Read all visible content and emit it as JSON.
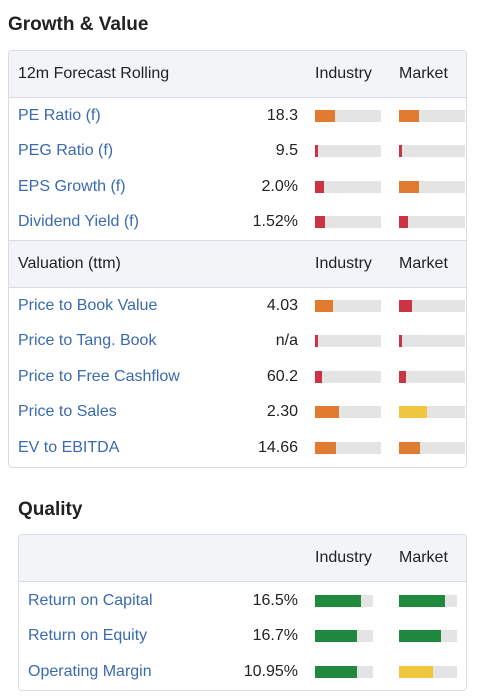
{
  "growth_value": {
    "title": "Growth & Value",
    "forecast": {
      "header": "12m Forecast Rolling",
      "col_industry": "Industry",
      "col_market": "Market",
      "rows": [
        {
          "label": "PE Ratio (f)",
          "value": "18.3",
          "industry_level": 0.3,
          "industry_color": "#e07b30",
          "market_level": 0.3,
          "market_color": "#e07b30"
        },
        {
          "label": "PEG Ratio (f)",
          "value": "9.5",
          "industry_level": 0.04,
          "industry_color": "#cc3344",
          "market_level": 0.04,
          "market_color": "#cc3344"
        },
        {
          "label": "EPS Growth (f)",
          "value": "2.0%",
          "industry_level": 0.14,
          "industry_color": "#cc3344",
          "market_level": 0.3,
          "market_color": "#e07b30"
        },
        {
          "label": "Dividend Yield (f)",
          "value": "1.52%",
          "industry_level": 0.15,
          "industry_color": "#cc3344",
          "market_level": 0.14,
          "market_color": "#cc3344"
        }
      ]
    },
    "valuation": {
      "header": "Valuation (ttm)",
      "col_industry": "Industry",
      "col_market": "Market",
      "rows": [
        {
          "label": "Price to Book Value",
          "value": "4.03",
          "industry_level": 0.28,
          "industry_color": "#e07b30",
          "market_level": 0.2,
          "market_color": "#cc3344"
        },
        {
          "label": "Price to Tang. Book",
          "value": "n/a",
          "industry_level": 0.04,
          "industry_color": "#cc3344",
          "market_level": 0.04,
          "market_color": "#cc3344"
        },
        {
          "label": "Price to Free Cashflow",
          "value": "60.2",
          "industry_level": 0.1,
          "industry_color": "#cc3344",
          "market_level": 0.1,
          "market_color": "#cc3344"
        },
        {
          "label": "Price to Sales",
          "value": "2.30",
          "industry_level": 0.36,
          "industry_color": "#e07b30",
          "market_level": 0.42,
          "market_color": "#f0c540"
        },
        {
          "label": "EV to EBITDA",
          "value": "14.66",
          "industry_level": 0.32,
          "industry_color": "#e07b30",
          "market_level": 0.32,
          "market_color": "#e07b30"
        }
      ]
    }
  },
  "quality": {
    "title": "Quality",
    "header": "",
    "col_industry": "Industry",
    "col_market": "Market",
    "rows": [
      {
        "label": "Return on Capital",
        "value": "16.5%",
        "industry_level": 0.8,
        "industry_color": "#1f8a3e",
        "market_level": 0.8,
        "market_color": "#1f8a3e"
      },
      {
        "label": "Return on Equity",
        "value": "16.7%",
        "industry_level": 0.72,
        "industry_color": "#1f8a3e",
        "market_level": 0.72,
        "market_color": "#1f8a3e"
      },
      {
        "label": "Operating Margin",
        "value": "10.95%",
        "industry_level": 0.73,
        "industry_color": "#1f8a3e",
        "market_level": 0.58,
        "market_color": "#f0c540"
      }
    ]
  }
}
